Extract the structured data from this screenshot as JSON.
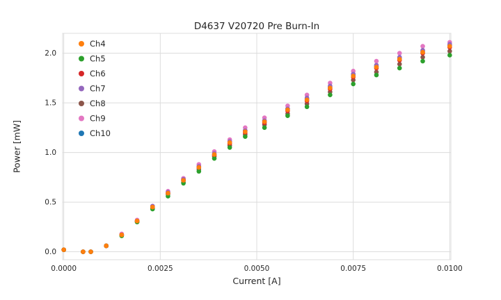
{
  "chart_data": {
    "type": "scatter",
    "title": "D4637 V20720 Pre Burn-In",
    "xlabel": "Current [A]",
    "ylabel": "Power [mW]",
    "grid": true,
    "legend_position": "upper left",
    "background": "#ffffff",
    "grid_color": "#dcdcdc",
    "text_color": "#262626",
    "xlim": [
      -3e-05,
      0.01003
    ],
    "ylim": [
      -0.08,
      2.2
    ],
    "x_ticks": [
      0.0,
      0.0025,
      0.005,
      0.0075,
      0.01
    ],
    "x_tick_labels": [
      "0.0000",
      "0.0025",
      "0.0050",
      "0.0075",
      "0.0100"
    ],
    "y_ticks": [
      0.0,
      0.5,
      1.0,
      1.5,
      2.0
    ],
    "y_tick_labels": [
      "0.0",
      "0.5",
      "1.0",
      "1.5",
      "2.0"
    ],
    "x": [
      0.0,
      0.0005,
      0.0007,
      0.0011,
      0.0015,
      0.0019,
      0.0023,
      0.0027,
      0.0031,
      0.0035,
      0.0039,
      0.0043,
      0.0047,
      0.0052,
      0.0058,
      0.0063,
      0.0069,
      0.0075,
      0.0081,
      0.0087,
      0.0093,
      0.01
    ],
    "series": [
      {
        "name": "Ch4",
        "color": "#ff7f0e",
        "values": [
          0.02,
          0.0,
          0.0,
          0.06,
          0.17,
          0.31,
          0.45,
          0.59,
          0.72,
          0.85,
          0.98,
          1.1,
          1.21,
          1.31,
          1.43,
          1.53,
          1.65,
          1.77,
          1.86,
          1.94,
          2.01,
          2.07
        ]
      },
      {
        "name": "Ch5",
        "color": "#2ca02c",
        "values": [
          0.02,
          0.0,
          0.0,
          0.06,
          0.16,
          0.3,
          0.43,
          0.56,
          0.69,
          0.81,
          0.94,
          1.05,
          1.16,
          1.25,
          1.37,
          1.46,
          1.58,
          1.69,
          1.78,
          1.85,
          1.92,
          1.98
        ]
      },
      {
        "name": "Ch6",
        "color": "#d62728",
        "values": [
          0.02,
          0.0,
          0.0,
          0.06,
          0.17,
          0.31,
          0.45,
          0.59,
          0.72,
          0.85,
          0.97,
          1.09,
          1.2,
          1.3,
          1.42,
          1.52,
          1.64,
          1.76,
          1.85,
          1.93,
          2.0,
          2.06
        ]
      },
      {
        "name": "Ch7",
        "color": "#9467bd",
        "values": [
          0.02,
          0.0,
          0.0,
          0.06,
          0.17,
          0.31,
          0.46,
          0.6,
          0.73,
          0.86,
          0.99,
          1.11,
          1.22,
          1.32,
          1.44,
          1.55,
          1.67,
          1.79,
          1.88,
          1.96,
          2.03,
          2.09
        ]
      },
      {
        "name": "Ch8",
        "color": "#8c564b",
        "values": [
          0.02,
          0.0,
          0.0,
          0.06,
          0.17,
          0.3,
          0.44,
          0.58,
          0.7,
          0.83,
          0.96,
          1.07,
          1.18,
          1.28,
          1.39,
          1.49,
          1.61,
          1.73,
          1.81,
          1.89,
          1.96,
          2.02
        ]
      },
      {
        "name": "Ch9",
        "color": "#e377c2",
        "values": [
          0.02,
          0.0,
          0.0,
          0.06,
          0.18,
          0.32,
          0.46,
          0.61,
          0.74,
          0.88,
          1.01,
          1.13,
          1.25,
          1.35,
          1.47,
          1.58,
          1.7,
          1.82,
          1.92,
          2.0,
          2.07,
          2.11
        ]
      },
      {
        "name": "Ch10",
        "color": "#1f77b4",
        "values": [
          0.02,
          0.0,
          0.0,
          0.06,
          0.17,
          0.31,
          0.45,
          0.59,
          0.72,
          0.85,
          0.98,
          1.11,
          1.22,
          1.32,
          1.44,
          1.54,
          1.66,
          1.78,
          1.87,
          1.95,
          2.02,
          2.08
        ]
      }
    ]
  }
}
